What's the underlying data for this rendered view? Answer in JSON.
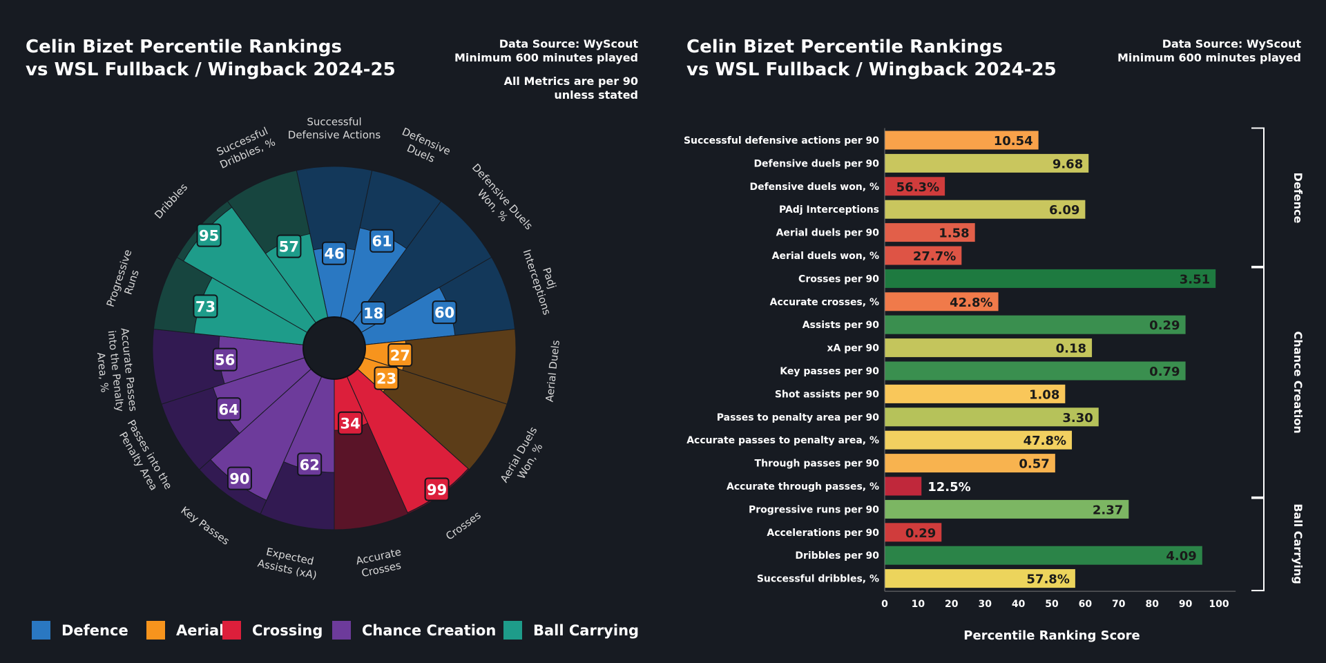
{
  "radar": {
    "title_line1": "Celin Bizet Percentile Rankings",
    "title_line2": "vs WSL Fullback / Wingback 2024-25",
    "source_line1": "Data Source: WyScout",
    "source_line2": "Minimum 600 minutes played",
    "note_line1": "All Metrics are per 90",
    "note_line2": "unless stated"
  },
  "bars": {
    "title_line1": "Celin Bizet Percentile Rankings",
    "title_line2": "vs WSL Fullback / Wingback 2024-25",
    "source_line1": "Data Source: WyScout",
    "source_line2": "Minimum 600 minutes played"
  },
  "legend": [
    {
      "label": "Defence",
      "color": "#2a78c2"
    },
    {
      "label": "Aerial",
      "color": "#f7941d"
    },
    {
      "label": "Crossing",
      "color": "#dc1f3b"
    },
    {
      "label": "Chance Creation",
      "color": "#6d3b9b"
    },
    {
      "label": "Ball Carrying",
      "color": "#1e9c8a"
    }
  ],
  "chart_data": [
    {
      "type": "radar-bar",
      "title": "Celin Bizet Percentile Rankings vs WSL Fullback / Wingback 2024-25",
      "range": [
        0,
        100
      ],
      "groups": {
        "Defence": {
          "color": "#2a78c2",
          "bg": "#13385a"
        },
        "Aerial": {
          "color": "#f7941d",
          "bg": "#5c3d18"
        },
        "Crossing": {
          "color": "#dc1f3b",
          "bg": "#5a1428"
        },
        "Chance Creation": {
          "color": "#6d3b9b",
          "bg": "#321a52"
        },
        "Ball Carrying": {
          "color": "#1e9c8a",
          "bg": "#17453f"
        }
      },
      "slices": [
        {
          "label": [
            "Successful",
            "Defensive Actions"
          ],
          "value": 46,
          "group": "Defence"
        },
        {
          "label": [
            "Defensive",
            "Duels"
          ],
          "value": 61,
          "group": "Defence"
        },
        {
          "label": [
            "Defensive Duels",
            "Won, %"
          ],
          "value": 18,
          "group": "Defence"
        },
        {
          "label": [
            "Padj",
            "Interceptions"
          ],
          "value": 60,
          "group": "Defence"
        },
        {
          "label": [
            "Aerial Duels"
          ],
          "value": 27,
          "group": "Aerial"
        },
        {
          "label": [
            "Aerial Duels",
            "Won, %"
          ],
          "value": 23,
          "group": "Aerial"
        },
        {
          "label": [
            "Crosses"
          ],
          "value": 99,
          "group": "Crossing"
        },
        {
          "label": [
            "Accurate",
            "Crosses"
          ],
          "value": 34,
          "group": "Crossing"
        },
        {
          "label": [
            "Expected",
            "Assists (xA)"
          ],
          "value": 62,
          "group": "Chance Creation"
        },
        {
          "label": [
            "Key Passes"
          ],
          "value": 90,
          "group": "Chance Creation"
        },
        {
          "label": [
            "Passes into the",
            "Penalty Area"
          ],
          "value": 64,
          "group": "Chance Creation"
        },
        {
          "label": [
            "Accurate Passes",
            "into the Penalty",
            "Area, %"
          ],
          "value": 56,
          "group": "Chance Creation"
        },
        {
          "label": [
            "Progressive",
            "Runs"
          ],
          "value": 73,
          "group": "Ball Carrying"
        },
        {
          "label": [
            "Dribbles"
          ],
          "value": 95,
          "group": "Ball Carrying"
        },
        {
          "label": [
            "Successful",
            "Dribbles, %"
          ],
          "value": 57,
          "group": "Ball Carrying"
        }
      ]
    },
    {
      "type": "bar",
      "orientation": "horizontal",
      "title": "Celin Bizet Percentile Rankings vs WSL Fullback / Wingback 2024-25",
      "xlabel": "Percentile Ranking Score",
      "xlim": [
        0,
        100
      ],
      "xticks": [
        0,
        10,
        20,
        30,
        40,
        50,
        60,
        70,
        80,
        90,
        100
      ],
      "grid": false,
      "bars": [
        {
          "category": "Successful defensive actions per 90",
          "percentile": 46,
          "label": "10.54",
          "color": "#f9a24a"
        },
        {
          "category": "Defensive duels per 90",
          "percentile": 61,
          "label": "9.68",
          "color": "#c9c65e"
        },
        {
          "category": "Defensive duels won, %",
          "percentile": 18,
          "label": "56.3%",
          "color": "#d03c3c"
        },
        {
          "category": "PAdj Interceptions",
          "percentile": 60,
          "label": "6.09",
          "color": "#c9c65e"
        },
        {
          "category": "Aerial duels per 90",
          "percentile": 27,
          "label": "1.58",
          "color": "#e25f49"
        },
        {
          "category": "Aerial duels won, %",
          "percentile": 23,
          "label": "27.7%",
          "color": "#de5445"
        },
        {
          "category": "Crosses per 90",
          "percentile": 99,
          "label": "3.51",
          "color": "#1e7a40"
        },
        {
          "category": "Accurate crosses, %",
          "percentile": 34,
          "label": "42.8%",
          "color": "#f07a4a"
        },
        {
          "category": "Assists per 90",
          "percentile": 90,
          "label": "0.29",
          "color": "#3a8f4f"
        },
        {
          "category": "xA per 90",
          "percentile": 62,
          "label": "0.18",
          "color": "#c4c55c"
        },
        {
          "category": "Key passes per 90",
          "percentile": 90,
          "label": "0.79",
          "color": "#3a8f4f"
        },
        {
          "category": "Shot assists per 90",
          "percentile": 54,
          "label": "1.08",
          "color": "#f9c75a"
        },
        {
          "category": "Passes to penalty area per 90",
          "percentile": 64,
          "label": "3.30",
          "color": "#b6c25a"
        },
        {
          "category": "Accurate passes to penalty area, %",
          "percentile": 56,
          "label": "47.8%",
          "color": "#f2d060"
        },
        {
          "category": "Through passes per 90",
          "percentile": 51,
          "label": "0.57",
          "color": "#f8b34f"
        },
        {
          "category": "Accurate through passes, %",
          "percentile": 11,
          "label": "12.5%",
          "color": "#c0283b"
        },
        {
          "category": "Progressive runs per 90",
          "percentile": 73,
          "label": "2.37",
          "color": "#7cb663"
        },
        {
          "category": "Accelerations per 90",
          "percentile": 17,
          "label": "0.29",
          "color": "#d03c3c"
        },
        {
          "category": "Dribbles per 90",
          "percentile": 95,
          "label": "4.09",
          "color": "#2b8448"
        },
        {
          "category": "Successful dribbles, %",
          "percentile": 57,
          "label": "57.8%",
          "color": "#ecd45c"
        }
      ],
      "groups": [
        {
          "label": "Defence",
          "from": 0,
          "to": 5
        },
        {
          "label": "Chance Creation",
          "from": 6,
          "to": 15
        },
        {
          "label": "Ball Carrying",
          "from": 16,
          "to": 19
        }
      ]
    }
  ]
}
